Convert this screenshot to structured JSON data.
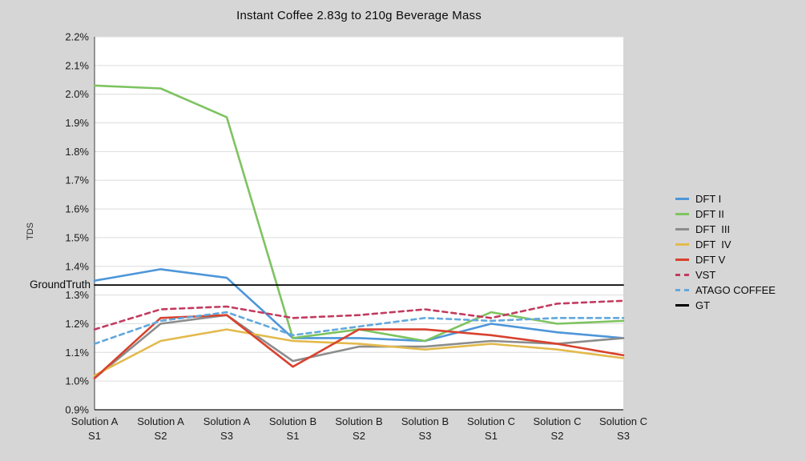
{
  "chart_data": {
    "type": "line",
    "title": "Instant Coffee 2.83g to 210g Beverage Mass",
    "ylabel": "TDS",
    "ylim": [
      0.9,
      2.2
    ],
    "ytick_step": 0.1,
    "ytick_labels": [
      "0.9%",
      "1.0%",
      "1.1%",
      "1.2%",
      "1.3%",
      "1.4%",
      "1.5%",
      "1.6%",
      "1.7%",
      "1.8%",
      "1.9%",
      "2.0%",
      "2.1%",
      "2.2%"
    ],
    "grid": "horizontal",
    "legend_position": "right",
    "ground_truth": {
      "label": "GroundTruth",
      "value": 1.335
    },
    "categories": [
      {
        "group": "Solution A",
        "sample": "S1"
      },
      {
        "group": "Solution A",
        "sample": "S2"
      },
      {
        "group": "Solution A",
        "sample": "S3"
      },
      {
        "group": "Solution B",
        "sample": "S1"
      },
      {
        "group": "Solution B",
        "sample": "S2"
      },
      {
        "group": "Solution B",
        "sample": "S3"
      },
      {
        "group": "Solution C",
        "sample": "S1"
      },
      {
        "group": "Solution C",
        "sample": "S2"
      },
      {
        "group": "Solution C",
        "sample": "S3"
      }
    ],
    "series": [
      {
        "name": "DFT I",
        "color": "#4d96d9",
        "style": "solid",
        "values": [
          1.35,
          1.39,
          1.36,
          1.15,
          1.15,
          1.14,
          1.2,
          1.17,
          1.15
        ]
      },
      {
        "name": "DFT II",
        "color": "#7ec360",
        "style": "solid",
        "values": [
          2.03,
          2.02,
          1.92,
          1.15,
          1.18,
          1.14,
          1.24,
          1.2,
          1.21
        ]
      },
      {
        "name": "DFT  III",
        "color": "#8c8c8c",
        "style": "solid",
        "values": [
          1.01,
          1.2,
          1.23,
          1.07,
          1.12,
          1.12,
          1.14,
          1.13,
          1.15
        ]
      },
      {
        "name": "DFT  IV",
        "color": "#e2ba4c",
        "style": "solid",
        "values": [
          1.02,
          1.14,
          1.18,
          1.14,
          1.13,
          1.11,
          1.13,
          1.11,
          1.08
        ]
      },
      {
        "name": "DFT V",
        "color": "#d8422e",
        "style": "solid",
        "values": [
          1.01,
          1.22,
          1.23,
          1.05,
          1.18,
          1.18,
          1.16,
          1.13,
          1.09
        ]
      },
      {
        "name": "VST",
        "color": "#c23b5f",
        "style": "dashed",
        "values": [
          1.18,
          1.25,
          1.26,
          1.22,
          1.23,
          1.25,
          1.22,
          1.27,
          1.28
        ]
      },
      {
        "name": "ATAGO COFFEE",
        "color": "#62a8dc",
        "style": "dashed",
        "values": [
          1.13,
          1.21,
          1.24,
          1.16,
          1.19,
          1.22,
          1.21,
          1.22,
          1.22
        ]
      },
      {
        "name": "GT",
        "color": "#000000",
        "style": "solid",
        "values": [
          1.335,
          1.335,
          1.335,
          1.335,
          1.335,
          1.335,
          1.335,
          1.335,
          1.335
        ]
      }
    ]
  }
}
